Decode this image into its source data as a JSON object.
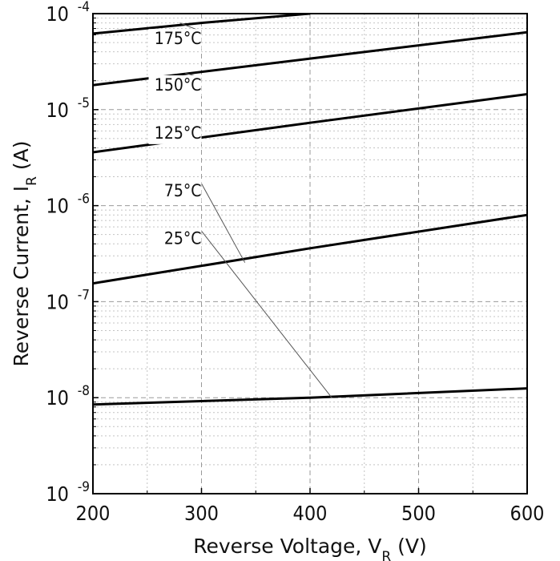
{
  "chart_data": {
    "type": "line",
    "title": "",
    "xlabel": "Reverse Voltage, V_R (V)",
    "ylabel": "Reverse Current, I_R (A)",
    "x_axis": {
      "label_main": "Reverse Voltage, V",
      "label_sub": "R",
      "label_tail": " (V)",
      "range": [
        200,
        600
      ],
      "ticks": [
        200,
        300,
        400,
        500,
        600
      ],
      "tick_labels": [
        "200",
        "300",
        "400",
        "500",
        "600"
      ]
    },
    "y_axis": {
      "label_main": "Reverse Current, I",
      "label_sub": "R",
      "label_tail": " (A)",
      "scale": "log",
      "range": [
        1e-09,
        0.0001
      ],
      "tick_values": [
        1e-09,
        1e-08,
        1e-07,
        1e-06,
        1e-05,
        0.0001
      ],
      "tick_base": "10",
      "tick_exponents": [
        "-9",
        "-8",
        "-7",
        "-6",
        "-5",
        "-4"
      ]
    },
    "grid": true,
    "series": [
      {
        "name": "25°C",
        "x": [
          200,
          400,
          600
        ],
        "y": [
          8.5e-09,
          1e-08,
          1.25e-08
        ]
      },
      {
        "name": "75°C",
        "x": [
          200,
          400,
          600
        ],
        "y": [
          1.55e-07,
          3.6e-07,
          8e-07
        ]
      },
      {
        "name": "125°C",
        "x": [
          200,
          400,
          600
        ],
        "y": [
          3.6e-06,
          7.3e-06,
          1.45e-05
        ]
      },
      {
        "name": "150°C",
        "x": [
          200,
          400,
          600
        ],
        "y": [
          1.8e-05,
          3.4e-05,
          6.4e-05
        ]
      },
      {
        "name": "175°C",
        "x": [
          200,
          300,
          400
        ],
        "y": [
          6.2e-05,
          8e-05,
          0.0001
        ]
      }
    ],
    "annotations": [
      {
        "text": "175°C",
        "series": "175°C",
        "label_at": [
          300,
          4.8e-05
        ],
        "points_to": [
          280,
          8e-05
        ]
      },
      {
        "text": "150°C",
        "series": "150°C",
        "label_at": [
          300,
          1.58e-05
        ],
        "points_to": [
          285,
          2.4e-05
        ]
      },
      {
        "text": "125°C",
        "series": "125°C",
        "label_at": [
          300,
          5e-06
        ],
        "points_to": [
          300,
          5e-06
        ]
      },
      {
        "text": "75°C",
        "series": "75°C",
        "label_at": [
          300,
          1.25e-06
        ],
        "points_to": [
          340,
          2.55e-07
        ]
      },
      {
        "text": "25°C",
        "series": "25°C",
        "label_at": [
          300,
          4e-07
        ],
        "points_to": [
          420,
          1e-08
        ]
      }
    ],
    "colors": {
      "line": "#000000",
      "grid": "#9a9a9a",
      "leader": "#555555"
    }
  }
}
